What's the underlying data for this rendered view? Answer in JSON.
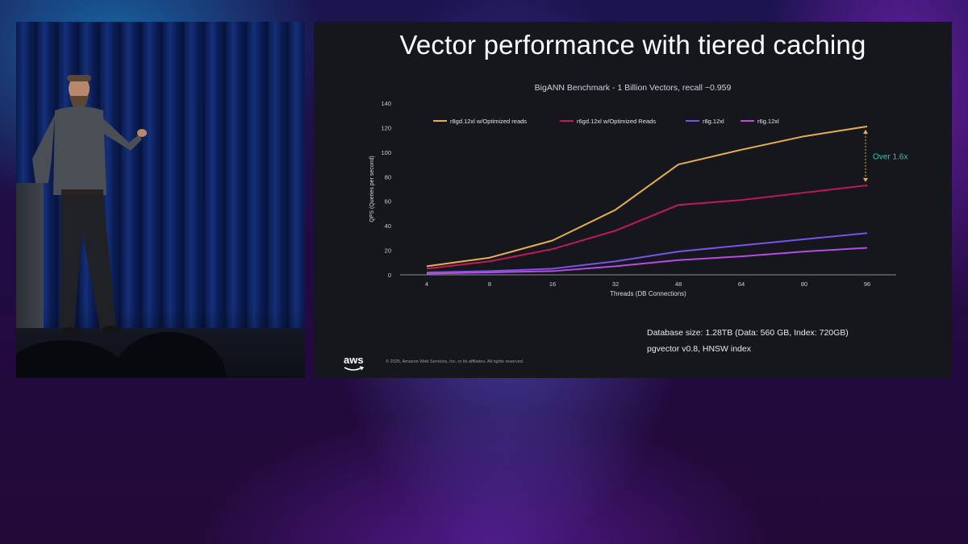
{
  "slide": {
    "title": "Vector performance with tiered caching",
    "notes": [
      "Database size: 1.28TB (Data: 560 GB, Index: 720GB)",
      "pgvector v0.8, HNSW index"
    ],
    "logo": "aws",
    "copyright": "© 2025, Amazon Web Services, Inc. or its affiliates. All rights reserved."
  },
  "chart_data": {
    "type": "line",
    "title": "BigANN Benchmark - 1 Billion Vectors, recall ~0.959",
    "xlabel": "Threads (DB Connections)",
    "ylabel": "QPS (Queries per second)",
    "x": [
      "4",
      "8",
      "16",
      "32",
      "48",
      "64",
      "80",
      "96"
    ],
    "yticks": [
      0,
      20,
      40,
      60,
      80,
      100,
      120,
      140
    ],
    "ylim": [
      0,
      140
    ],
    "grid": false,
    "legend_position": "top",
    "series": [
      {
        "name": "r8gd.12xl w/Optimized reads",
        "color": "#e8b04a",
        "values": [
          7,
          14,
          28,
          53,
          90,
          102,
          113,
          121
        ]
      },
      {
        "name": "r6gd.12xl w/Optimized Reads",
        "color": "#c2185b",
        "values": [
          5,
          11,
          21,
          36,
          57,
          61,
          67,
          73
        ]
      },
      {
        "name": "r8g.12xl",
        "color": "#7b52e8",
        "values": [
          2,
          3,
          5,
          11,
          19,
          24,
          29,
          34
        ]
      },
      {
        "name": "r6g.12xl",
        "color": "#b84ce0",
        "values": [
          1,
          2,
          3,
          7,
          12,
          15,
          19,
          22
        ]
      }
    ],
    "annotation": {
      "text": "Over 1.6x",
      "color": "#2ec4b6",
      "arrow_color": "#e8b04a",
      "x": "96",
      "from_series": 1,
      "to_series": 0
    }
  }
}
